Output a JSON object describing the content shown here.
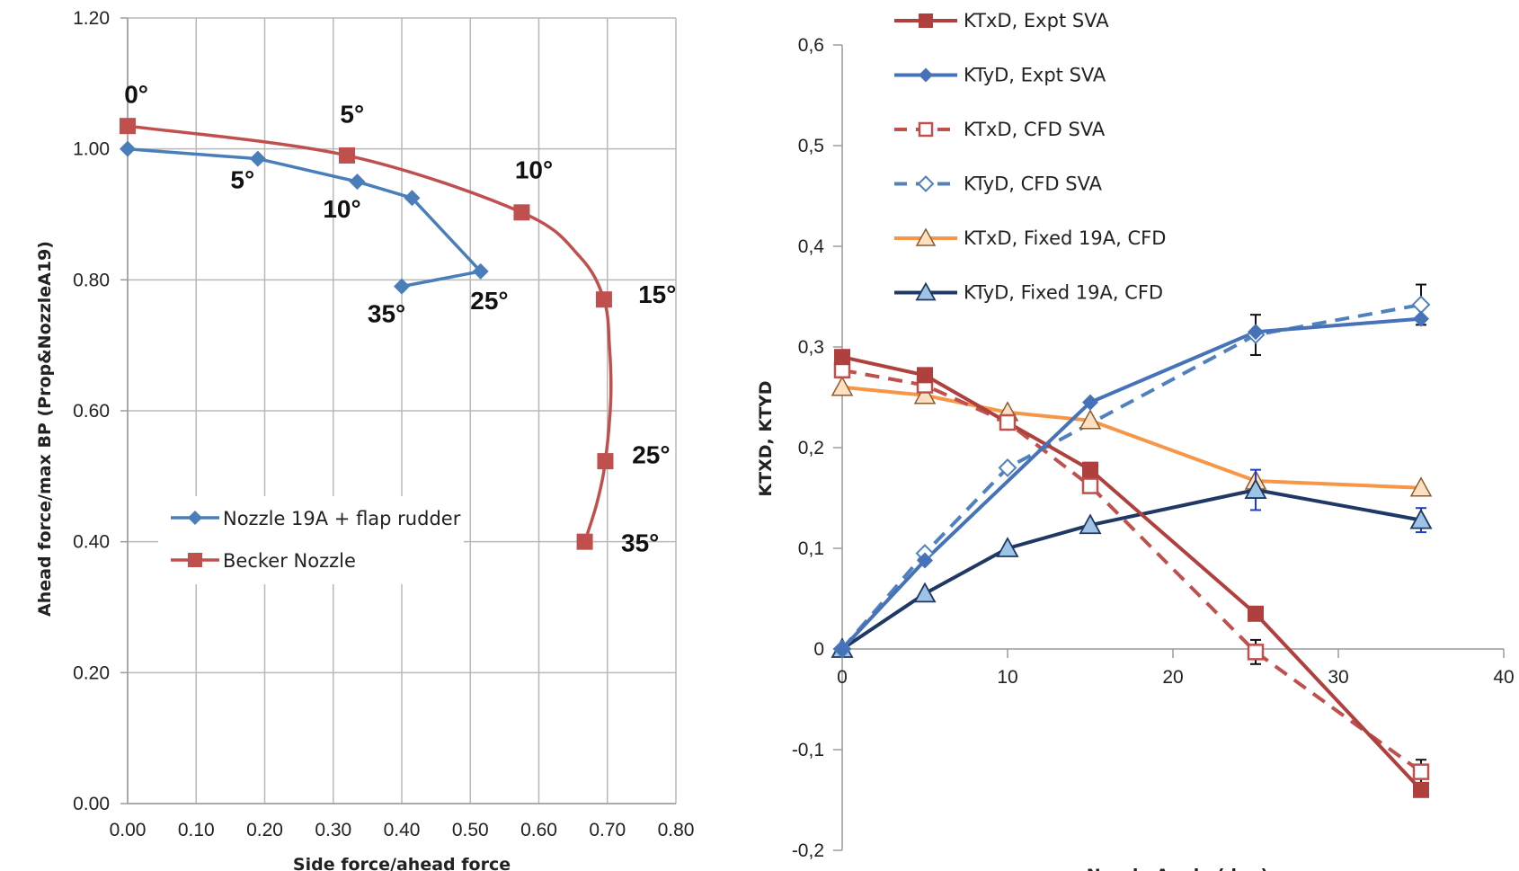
{
  "chart_data": [
    {
      "type": "line",
      "title": "",
      "xlabel": "Side force/ahead force",
      "ylabel": "Ahead force/max BP (Prop&NozzleA19)",
      "xlim": [
        0,
        0.8
      ],
      "ylim": [
        0,
        1.2
      ],
      "xticks": [
        "0.00",
        "0.10",
        "0.20",
        "0.30",
        "0.40",
        "0.50",
        "0.60",
        "0.70",
        "0.80"
      ],
      "yticks": [
        "0.00",
        "0.20",
        "0.40",
        "0.60",
        "0.80",
        "1.00",
        "1.20"
      ],
      "grid": true,
      "legend_position": "lower-left",
      "series": [
        {
          "name": "Nozzle 19A + flap rudder",
          "color": "#4a7ebb",
          "marker": "diamond",
          "points": [
            [
              0.0,
              1.0
            ],
            [
              0.19,
              0.985
            ],
            [
              0.335,
              0.95
            ],
            [
              0.415,
              0.925
            ],
            [
              0.515,
              0.813
            ],
            [
              0.4,
              0.79
            ]
          ]
        },
        {
          "name": "Becker Nozzle",
          "color": "#c0504d",
          "marker": "square",
          "points": [
            [
              0.0,
              1.035
            ],
            [
              0.32,
              0.99
            ],
            [
              0.575,
              0.903
            ],
            [
              0.695,
              0.77
            ],
            [
              0.697,
              0.523
            ],
            [
              0.667,
              0.4
            ]
          ],
          "curve_points": [
            [
              0.0,
              1.035
            ],
            [
              0.32,
              0.99
            ],
            [
              0.575,
              0.903
            ],
            [
              0.66,
              0.835
            ],
            [
              0.695,
              0.77
            ],
            [
              0.703,
              0.7
            ],
            [
              0.705,
              0.62
            ],
            [
              0.697,
              0.523
            ],
            [
              0.685,
              0.46
            ],
            [
              0.667,
              0.4
            ]
          ]
        }
      ],
      "annotations": [
        {
          "text": "0°",
          "x": -0.005,
          "y": 1.07
        },
        {
          "text": "5°",
          "x": 0.31,
          "y": 1.04
        },
        {
          "text": "10°",
          "x": 0.565,
          "y": 0.955
        },
        {
          "text": "15°",
          "x": 0.745,
          "y": 0.765
        },
        {
          "text": "25°",
          "x": 0.736,
          "y": 0.52
        },
        {
          "text": "35°",
          "x": 0.72,
          "y": 0.385
        },
        {
          "text": "5°",
          "x": 0.15,
          "y": 0.94
        },
        {
          "text": "10°",
          "x": 0.285,
          "y": 0.895
        },
        {
          "text": "25°",
          "x": 0.5,
          "y": 0.755
        },
        {
          "text": "35°",
          "x": 0.35,
          "y": 0.735
        }
      ]
    },
    {
      "type": "line",
      "title": "",
      "xlabel": "Nozzle Angle (deg)",
      "ylabel": "KTXD, KTYD",
      "xlim": [
        0,
        40
      ],
      "ylim": [
        -0.2,
        0.6
      ],
      "xticks": [
        "0",
        "10",
        "20",
        "30",
        "40"
      ],
      "yticks": [
        "-0,2",
        "-0,1",
        "0",
        "0,1",
        "0,2",
        "0,3",
        "0,4",
        "0,5",
        "0,6"
      ],
      "grid": false,
      "legend_position": "top-left",
      "series": [
        {
          "name": "KTxD, Expt SVA",
          "color": "#b0403e",
          "marker": "square-filled",
          "dash": false,
          "x": [
            0,
            5,
            15,
            25,
            35
          ],
          "y": [
            0.29,
            0.272,
            0.178,
            0.035,
            -0.14
          ]
        },
        {
          "name": "KTyD, Expt SVA",
          "color": "#4572b8",
          "marker": "diamond-filled",
          "dash": false,
          "x": [
            0,
            5,
            15,
            25,
            35
          ],
          "y": [
            0.0,
            0.088,
            0.245,
            0.315,
            0.328
          ]
        },
        {
          "name": "KTxD, CFD SVA",
          "color": "#c0504d",
          "marker": "square-open",
          "dash": true,
          "x": [
            0,
            5,
            10,
            15,
            25,
            35
          ],
          "y": [
            0.277,
            0.262,
            0.225,
            0.162,
            -0.003,
            -0.122
          ],
          "error_bars": [
            {
              "x": 15,
              "y": 0.162,
              "err": 0.005
            },
            {
              "x": 25,
              "y": -0.003,
              "err": 0.012
            },
            {
              "x": 35,
              "y": -0.122,
              "err": 0.012
            }
          ]
        },
        {
          "name": "KTyD, CFD SVA",
          "color": "#4f81bd",
          "marker": "diamond-open",
          "dash": true,
          "x": [
            0,
            5,
            10,
            25,
            35
          ],
          "y": [
            0.0,
            0.095,
            0.18,
            0.312,
            0.342
          ],
          "error_bars": [
            {
              "x": 25,
              "y": 0.312,
              "err": 0.02
            },
            {
              "x": 35,
              "y": 0.342,
              "err": 0.02
            }
          ]
        },
        {
          "name": "KTxD, Fixed 19A, CFD",
          "color": "#f79646",
          "marker": "triangle-open",
          "dash": false,
          "x": [
            0,
            5,
            10,
            15,
            25,
            35
          ],
          "y": [
            0.26,
            0.252,
            0.235,
            0.227,
            0.167,
            0.16
          ]
        },
        {
          "name": "KTyD, Fixed 19A, CFD",
          "color": "#1f3864",
          "marker": "triangle-filled",
          "dash": false,
          "x": [
            0,
            5,
            10,
            15,
            25,
            35
          ],
          "y": [
            0.0,
            0.055,
            0.1,
            0.123,
            0.158,
            0.128
          ],
          "error_bars": [
            {
              "x": 25,
              "y": 0.158,
              "err": 0.02
            },
            {
              "x": 35,
              "y": 0.128,
              "err": 0.012
            }
          ]
        }
      ]
    }
  ]
}
